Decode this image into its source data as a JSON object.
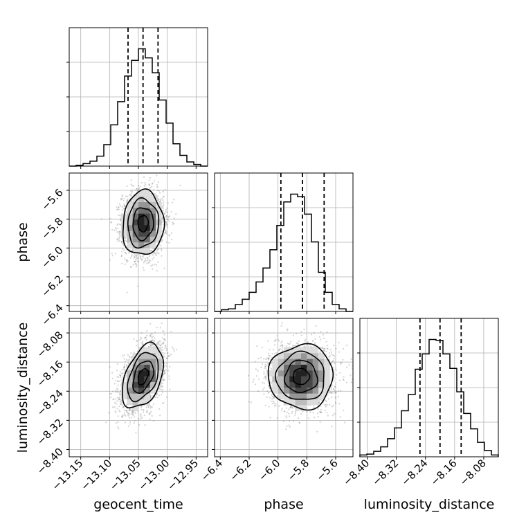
{
  "chart_data": {
    "type": "corner",
    "parameters": [
      "geocent_time",
      "phase",
      "luminosity_distance"
    ],
    "axis_labels": {
      "x": [
        "geocent_time",
        "phase",
        "luminosity_distance"
      ],
      "y": [
        "",
        "phase",
        "luminosity_distance"
      ]
    },
    "ranges": {
      "geocent_time": [
        -13.17,
        -12.93
      ],
      "phase": [
        -6.44,
        -5.48
      ],
      "luminosity_distance": [
        -8.42,
        -8.04
      ]
    },
    "ticks": {
      "geocent_time": [
        -13.15,
        -13.1,
        -13.05,
        -13.0,
        -12.95
      ],
      "phase": [
        -6.4,
        -6.2,
        -6.0,
        -5.8,
        -5.6
      ],
      "luminosity_distance": [
        -8.4,
        -8.32,
        -8.24,
        -8.16,
        -8.08
      ]
    },
    "tick_labels": {
      "geocent_time": [
        "−13.15",
        "−13.10",
        "−13.05",
        "−13.00",
        "−12.95"
      ],
      "phase": [
        "−6.4",
        "−6.2",
        "−6.0",
        "−5.8",
        "−5.6"
      ],
      "luminosity_distance": [
        "−8.40",
        "−8.32",
        "−8.24",
        "−8.16",
        "−8.08"
      ]
    },
    "histograms": {
      "geocent_time": {
        "edges": [
          -13.17,
          -13.158,
          -13.146,
          -13.134,
          -13.122,
          -13.11,
          -13.098,
          -13.086,
          -13.074,
          -13.062,
          -13.05,
          -13.038,
          -13.026,
          -13.014,
          -13.002,
          -12.99,
          -12.978,
          -12.966,
          -12.954,
          -12.942,
          -12.93
        ],
        "counts": [
          0,
          1,
          3,
          6,
          12,
          26,
          50,
          78,
          109,
          128,
          142,
          131,
          113,
          80,
          52,
          27,
          13,
          5,
          2,
          0
        ],
        "quantiles": [
          -13.068,
          -13.042,
          -13.016
        ]
      },
      "phase": {
        "edges": [
          -6.44,
          -6.392,
          -6.344,
          -6.296,
          -6.248,
          -6.2,
          -6.152,
          -6.104,
          -6.056,
          -6.008,
          -5.96,
          -5.912,
          -5.864,
          -5.816,
          -5.768,
          -5.72,
          -5.672,
          -5.624,
          -5.576,
          -5.528,
          -5.48
        ],
        "counts": [
          0,
          2,
          3,
          8,
          14,
          22,
          34,
          50,
          71,
          99,
          126,
          135,
          132,
          112,
          80,
          45,
          22,
          8,
          3,
          0
        ],
        "quantiles": [
          -5.98,
          -5.83,
          -5.68
        ]
      },
      "luminosity_distance": {
        "edges": [
          -8.42,
          -8.401,
          -8.382,
          -8.363,
          -8.344,
          -8.325,
          -8.306,
          -8.287,
          -8.268,
          -8.249,
          -8.23,
          -8.211,
          -8.192,
          -8.173,
          -8.154,
          -8.135,
          -8.116,
          -8.097,
          -8.078,
          -8.059,
          -8.04
        ],
        "counts": [
          2,
          3,
          6,
          11,
          20,
          32,
          51,
          69,
          97,
          114,
          130,
          129,
          114,
          98,
          72,
          48,
          31,
          16,
          7,
          2
        ],
        "quantiles": [
          -8.255,
          -8.2,
          -8.142
        ]
      }
    },
    "joint": [
      {
        "x": "geocent_time",
        "y": "phase",
        "mean": [
          -13.042,
          -5.83
        ],
        "std": [
          0.0178,
          0.112
        ],
        "correlation": 0.05,
        "contour_sigma": [
          0.5,
          1.0,
          1.5,
          2.0
        ]
      },
      {
        "x": "geocent_time",
        "y": "luminosity_distance",
        "mean": [
          -13.042,
          -8.2
        ],
        "std": [
          0.0178,
          0.044
        ],
        "correlation": 0.42,
        "contour_sigma": [
          0.5,
          1.0,
          1.5,
          2.0
        ]
      },
      {
        "x": "phase",
        "y": "luminosity_distance",
        "mean": [
          -5.84,
          -8.2
        ],
        "std": [
          0.112,
          0.044
        ],
        "correlation": 0.0,
        "contour_sigma": [
          0.5,
          1.0,
          1.5,
          2.0
        ]
      }
    ],
    "grid": true,
    "colors": {
      "line": "#000000",
      "scatter": "#808080",
      "grid": "#b0b0b0",
      "density": [
        "#f2f2f2",
        "#dcdcdc",
        "#bdbdbd",
        "#969696",
        "#6e6e6e",
        "#474747",
        "#222222"
      ]
    }
  }
}
